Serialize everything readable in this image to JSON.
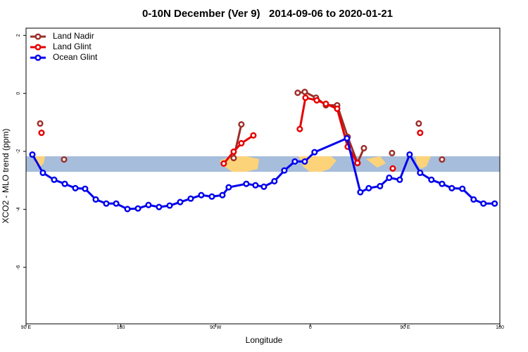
{
  "chart_data": {
    "type": "line",
    "title": "0-10N December (Ver 9)   2014-09-06 to 2020-01-21",
    "x_label": "Longitude",
    "y_label": "XCO2 - MLO trend (ppm)",
    "xlim": [
      90,
      540
    ],
    "ylim": [
      -7.95,
      2.25
    ],
    "xticks": [
      {
        "value": 90,
        "label": "90 E"
      },
      180,
      {
        "value": 270,
        "label": "90 W"
      },
      {
        "value": 360,
        "label": "0"
      },
      {
        "value": 450,
        "label": "90 E"
      },
      {
        "value": 540,
        "label": "180"
      }
    ],
    "yticks": [
      2,
      0,
      -2,
      -4,
      -6
    ],
    "legend": "top-left",
    "series": [
      {
        "name": "Land Nadir",
        "color": "#9c2f2a",
        "x": [
          103.4,
          null,
          126.1,
          null,
          287.2,
          294.5,
          null,
          348.0,
          354.7,
          365.4,
          374.8,
          385.5,
          395.5,
          404.8,
          410.9,
          null,
          437.6,
          null,
          463.0,
          null,
          485.1
        ],
        "values": [
          -1.04,
          null,
          -2.28,
          null,
          -2.23,
          -1.07,
          null,
          0.02,
          0.05,
          -0.15,
          -0.41,
          -0.41,
          -1.5,
          -2.4,
          -1.89,
          null,
          -2.06,
          null,
          -1.04,
          null,
          -2.28
        ]
      },
      {
        "name": "Land Glint",
        "color": "#e60000",
        "x": [
          104.7,
          null,
          277.8,
          287.2,
          294.5,
          305.9,
          null,
          350.0,
          355.4,
          366.1,
          374.8,
          385.5,
          395.5,
          404.8,
          null,
          438.3,
          null,
          464.3
        ],
        "values": [
          -1.36,
          null,
          -2.42,
          -2.01,
          -1.72,
          -1.45,
          null,
          -1.23,
          -0.15,
          -0.24,
          -0.36,
          -0.53,
          -1.84,
          -2.4,
          null,
          -2.59,
          null,
          -1.36
        ]
      },
      {
        "name": "Ocean Glint",
        "color": "#0000ee",
        "x": [
          96.0,
          106.0,
          116.7,
          126.8,
          136.8,
          146.1,
          156.2,
          166.2,
          175.6,
          186.3,
          196.3,
          206.3,
          216.3,
          226.4,
          236.4,
          246.4,
          256.4,
          266.5,
          276.5,
          282.5,
          299.2,
          307.9,
          315.9,
          325.9,
          335.3,
          345.3,
          354.7,
          364.0,
          394.8,
          407.5,
          415.5,
          426.2,
          434.9,
          444.9,
          454.3,
          464.3,
          475.0,
          485.1,
          494.4,
          504.4,
          515.1,
          524.4,
          535.1
        ],
        "values": [
          -2.11,
          -2.74,
          -2.98,
          -3.12,
          -3.27,
          -3.29,
          -3.66,
          -3.8,
          -3.8,
          -3.99,
          -3.97,
          -3.85,
          -3.92,
          -3.87,
          -3.75,
          -3.63,
          -3.51,
          -3.56,
          -3.51,
          -3.24,
          -3.12,
          -3.17,
          -3.22,
          -3.03,
          -2.66,
          -2.35,
          -2.35,
          -2.03,
          -1.55,
          -3.41,
          -3.27,
          -3.2,
          -2.91,
          -2.98,
          -2.11,
          -2.74,
          -2.98,
          -3.12,
          -3.27,
          -3.29,
          -3.66,
          -3.8,
          -3.8
        ]
      }
    ]
  }
}
